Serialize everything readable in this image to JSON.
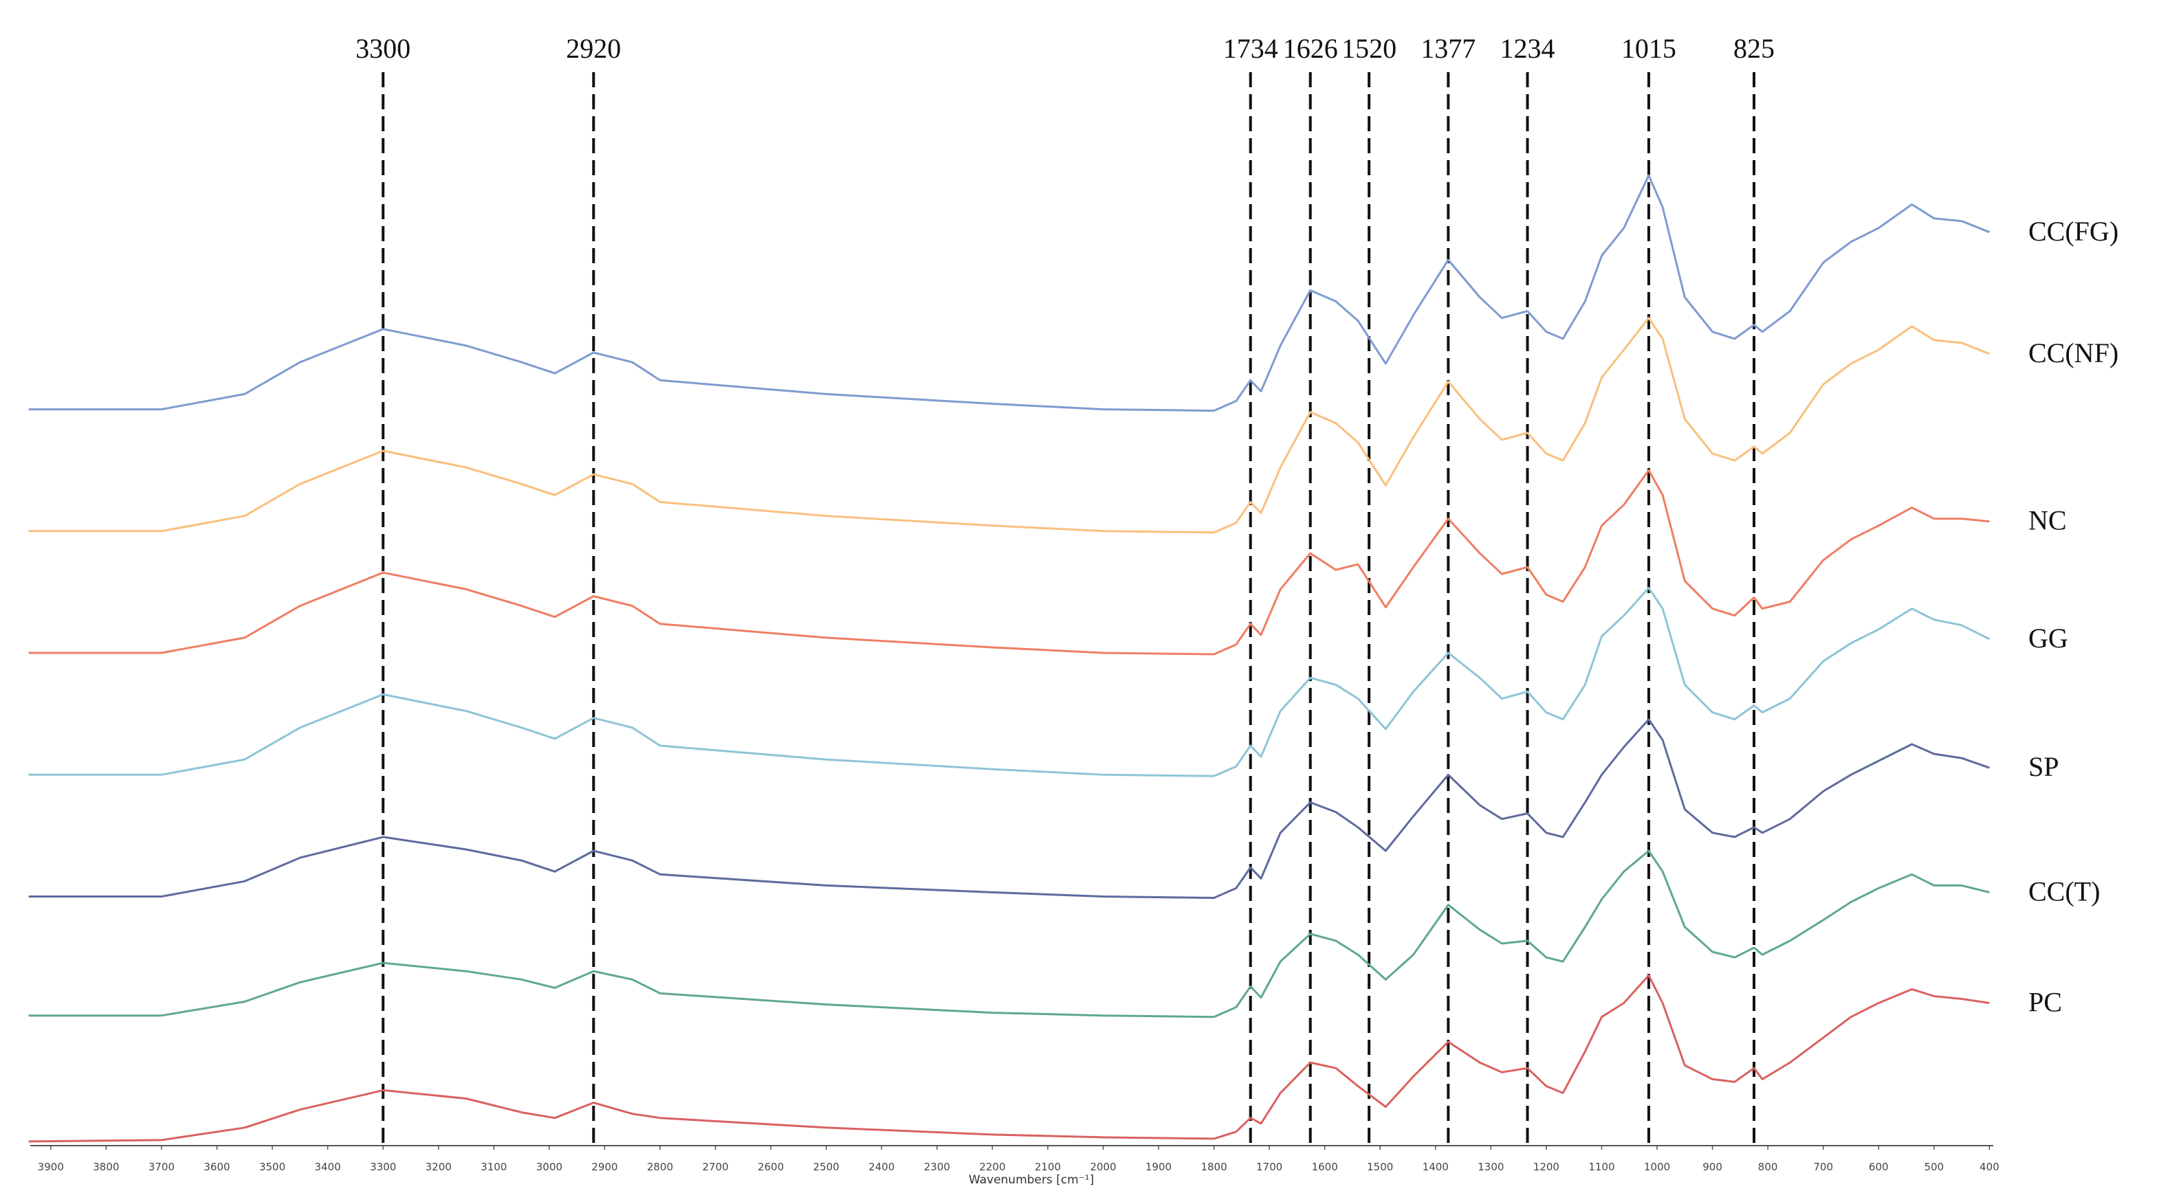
{
  "chart_data": {
    "type": "line",
    "x_label": "Wavenumbers [cm⁻¹]",
    "xlim": [
      3937,
      393
    ],
    "ylim": [
      0,
      720
    ],
    "xticks": [
      3900,
      3800,
      3700,
      3600,
      3500,
      3400,
      3300,
      3200,
      3100,
      3000,
      2900,
      2800,
      2700,
      2600,
      2500,
      2400,
      2300,
      2200,
      2100,
      2000,
      1900,
      1800,
      1700,
      1600,
      1500,
      1400,
      1300,
      1200,
      1100,
      1000,
      900,
      800,
      700,
      600,
      500,
      400
    ],
    "reference_lines": [
      3300,
      2920,
      1734,
      1626,
      1520,
      1377,
      1234,
      1015,
      825
    ],
    "x": [
      3940,
      3700,
      3550,
      3450,
      3300,
      3150,
      3050,
      2990,
      2920,
      2850,
      2800,
      2500,
      2200,
      2000,
      1800,
      1760,
      1734,
      1715,
      1680,
      1626,
      1580,
      1540,
      1490,
      1440,
      1377,
      1320,
      1280,
      1234,
      1200,
      1170,
      1130,
      1100,
      1060,
      1015,
      990,
      950,
      900,
      860,
      825,
      810,
      760,
      700,
      650,
      600,
      540,
      500,
      450,
      400
    ],
    "series": [
      {
        "name": "CC(FG)",
        "color": "#7f9bd0",
        "values": [
          534,
          534,
          545,
          568,
          592,
          580,
          568,
          560,
          575,
          568,
          555,
          545,
          538,
          534,
          533,
          540,
          555,
          547,
          580,
          620,
          612,
          598,
          567,
          602,
          642,
          615,
          600,
          605,
          590,
          585,
          612,
          645,
          665,
          703,
          680,
          615,
          590,
          585,
          595,
          590,
          605,
          640,
          655,
          665,
          682,
          672,
          670,
          662
        ]
      },
      {
        "name": "CC(NF)",
        "color": "#f9bf7e",
        "values": [
          446,
          446,
          457,
          480,
          504,
          492,
          480,
          472,
          487,
          480,
          467,
          457,
          450,
          446,
          445,
          452,
          467,
          459,
          492,
          532,
          524,
          510,
          479,
          514,
          554,
          527,
          512,
          517,
          502,
          497,
          524,
          557,
          577,
          600,
          585,
          527,
          502,
          497,
          507,
          502,
          517,
          552,
          567,
          577,
          594,
          584,
          582,
          574
        ]
      },
      {
        "name": "NC",
        "color": "#ef7e63",
        "values": [
          358,
          358,
          369,
          392,
          416,
          404,
          392,
          384,
          399,
          392,
          379,
          369,
          362,
          358,
          357,
          364,
          379,
          371,
          404,
          430,
          418,
          422,
          391,
          420,
          455,
          430,
          415,
          420,
          400,
          395,
          420,
          450,
          465,
          490,
          472,
          410,
          390,
          385,
          398,
          390,
          395,
          425,
          440,
          450,
          463,
          455,
          455,
          453
        ]
      },
      {
        "name": "GG",
        "color": "#8ec5d6",
        "values": [
          270,
          270,
          281,
          304,
          328,
          316,
          304,
          296,
          311,
          304,
          291,
          281,
          274,
          270,
          269,
          276,
          291,
          283,
          316,
          340,
          335,
          325,
          303,
          330,
          358,
          340,
          325,
          330,
          315,
          310,
          335,
          370,
          385,
          405,
          390,
          335,
          315,
          310,
          320,
          315,
          325,
          352,
          365,
          375,
          390,
          382,
          378,
          368
        ]
      },
      {
        "name": "SP",
        "color": "#5e6b9e",
        "values": [
          182,
          182,
          193,
          210,
          225,
          216,
          208,
          200,
          215,
          208,
          198,
          190,
          185,
          182,
          181,
          188,
          203,
          195,
          228,
          250,
          243,
          232,
          215,
          240,
          270,
          248,
          238,
          242,
          228,
          225,
          250,
          270,
          290,
          310,
          295,
          245,
          228,
          225,
          232,
          228,
          238,
          258,
          270,
          280,
          292,
          285,
          282,
          275
        ]
      },
      {
        "name": "CC(T)",
        "color": "#5fa98a",
        "values": [
          96,
          96,
          106,
          120,
          134,
          128,
          122,
          116,
          128,
          122,
          112,
          104,
          98,
          96,
          95,
          102,
          117,
          109,
          135,
          155,
          150,
          140,
          122,
          140,
          176,
          158,
          148,
          150,
          138,
          135,
          160,
          180,
          200,
          215,
          200,
          160,
          142,
          138,
          145,
          140,
          150,
          165,
          178,
          188,
          198,
          190,
          190,
          185
        ]
      },
      {
        "name": "PC",
        "color": "#d9625f",
        "values": [
          5,
          6,
          15,
          28,
          42,
          36,
          26,
          22,
          33,
          25,
          22,
          15,
          10,
          8,
          7,
          12,
          22,
          18,
          40,
          62,
          58,
          45,
          30,
          52,
          77,
          62,
          55,
          58,
          45,
          40,
          70,
          95,
          105,
          125,
          105,
          60,
          50,
          48,
          58,
          50,
          62,
          80,
          95,
          105,
          115,
          110,
          108,
          105
        ]
      }
    ]
  }
}
